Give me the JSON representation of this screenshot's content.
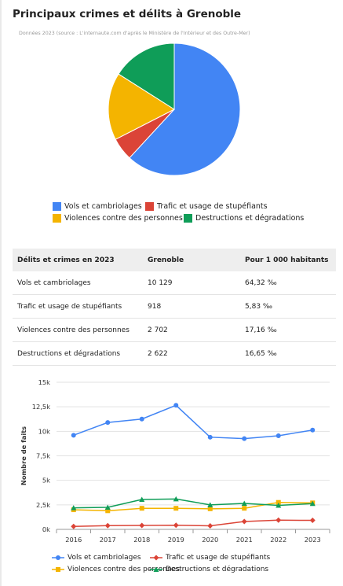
{
  "page": {
    "title": "Principaux crimes et délits à Grenoble",
    "subtitle": "Données 2023 (source : L'internaute.com d'après le Ministère de l'Intérieur et des Outre-Mer)"
  },
  "chart_data": [
    {
      "type": "pie",
      "categories": [
        "Vols et cambriolages",
        "Trafic et usage de stupéfiants",
        "Violences contre des personnes",
        "Destructions et dégradations"
      ],
      "values": [
        10129,
        918,
        2702,
        2622
      ],
      "colors": [
        "#4285f4",
        "#db4437",
        "#f4b400",
        "#0f9d58"
      ],
      "legend": "bottom"
    },
    {
      "type": "table",
      "headers": [
        "Délits et crimes en 2023",
        "Grenoble",
        "Pour 1 000 habitants"
      ],
      "rows": [
        [
          "Vols et cambriolages",
          "10 129",
          "64,32 ‰"
        ],
        [
          "Trafic et usage de stupéfiants",
          "918",
          "5,83 ‰"
        ],
        [
          "Violences contre des personnes",
          "2 702",
          "17,16 ‰"
        ],
        [
          "Destructions et dégradations",
          "2 622",
          "16,65 ‰"
        ]
      ]
    },
    {
      "type": "line",
      "x": [
        "2016",
        "2017",
        "2018",
        "2019",
        "2020",
        "2021",
        "2022",
        "2023"
      ],
      "ylabel": "Nombre de faits",
      "ylim": [
        0,
        15000
      ],
      "yticks": [
        0,
        2500,
        5000,
        7500,
        10000,
        12500,
        15000
      ],
      "ytick_labels": [
        "0k",
        "2,5k",
        "5k",
        "7,5k",
        "10k",
        "12,5k",
        "15k"
      ],
      "grid": true,
      "legend": "bottom",
      "series": [
        {
          "name": "Vols et cambriolages",
          "color": "#4285f4",
          "marker": "circle",
          "values": [
            9600,
            10900,
            11250,
            12650,
            9400,
            9250,
            9550,
            10129
          ]
        },
        {
          "name": "Trafic et usage de stupéfiants",
          "color": "#db4437",
          "marker": "diamond",
          "values": [
            300,
            380,
            400,
            420,
            360,
            800,
            940,
            918
          ]
        },
        {
          "name": "Violences contre des personnes",
          "color": "#f4b400",
          "marker": "square",
          "values": [
            2000,
            1900,
            2150,
            2150,
            2100,
            2150,
            2750,
            2702
          ]
        },
        {
          "name": "Destructions et dégradations",
          "color": "#0f9d58",
          "marker": "triangle",
          "values": [
            2200,
            2250,
            3050,
            3100,
            2500,
            2650,
            2450,
            2622
          ]
        }
      ]
    }
  ]
}
